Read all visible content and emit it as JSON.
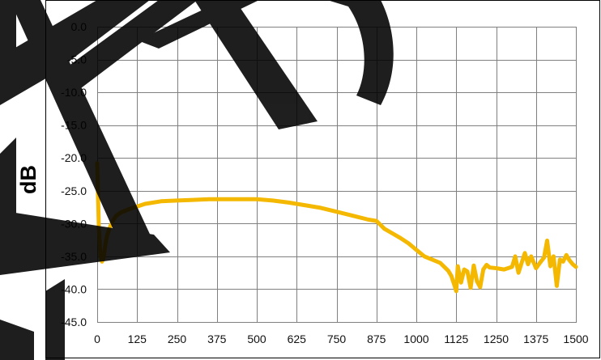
{
  "chart_data": {
    "type": "line",
    "title": "",
    "xlabel": "",
    "ylabel": "dB",
    "xlim": [
      0,
      1500
    ],
    "ylim": [
      -45,
      0
    ],
    "grid": true,
    "legend": "none",
    "x_ticks": [
      0,
      125,
      250,
      375,
      500,
      625,
      750,
      875,
      1000,
      1125,
      1250,
      1375,
      1500
    ],
    "x_tick_labels": [
      "0",
      "125",
      "250",
      "375",
      "500",
      "625",
      "750",
      "875",
      "1000",
      "1125",
      "1250",
      "1375",
      "1500"
    ],
    "y_ticks": [
      0,
      -5,
      -10,
      -15,
      -20,
      -25,
      -30,
      -35,
      -40,
      -45
    ],
    "y_tick_labels": [
      "0.0",
      "-5.0",
      "-10.0",
      "-15.0",
      "-20.0",
      "-25.0",
      "-30.0",
      "-35.0",
      "-40.0",
      "-45.0"
    ],
    "series": [
      {
        "color": "#F5B800",
        "x": [
          0,
          5,
          10,
          15,
          20,
          25,
          30,
          40,
          50,
          60,
          75,
          100,
          125,
          150,
          200,
          250,
          300,
          350,
          400,
          450,
          500,
          550,
          600,
          650,
          700,
          750,
          800,
          850,
          875,
          900,
          925,
          950,
          975,
          1000,
          1025,
          1050,
          1075,
          1100,
          1110,
          1120,
          1125,
          1130,
          1140,
          1150,
          1160,
          1170,
          1180,
          1190,
          1200,
          1210,
          1220,
          1230,
          1250,
          1275,
          1300,
          1310,
          1320,
          1330,
          1340,
          1350,
          1360,
          1375,
          1390,
          1400,
          1410,
          1420,
          1430,
          1440,
          1450,
          1460,
          1470,
          1480,
          1490,
          1500
        ],
        "values": [
          -20.8,
          -30.5,
          -34.8,
          -35.8,
          -35.2,
          -33.5,
          -32.0,
          -30.5,
          -29.5,
          -28.8,
          -28.3,
          -27.8,
          -27.4,
          -27.0,
          -26.6,
          -26.5,
          -26.4,
          -26.3,
          -26.3,
          -26.3,
          -26.3,
          -26.5,
          -26.8,
          -27.2,
          -27.6,
          -28.2,
          -28.8,
          -29.4,
          -29.6,
          -30.8,
          -31.5,
          -32.2,
          -33.0,
          -34.0,
          -35.0,
          -35.5,
          -36.0,
          -37.2,
          -38.0,
          -39.5,
          -40.3,
          -36.5,
          -39.0,
          -37.0,
          -37.3,
          -39.8,
          -36.4,
          -38.8,
          -39.7,
          -37.0,
          -36.3,
          -36.7,
          -36.8,
          -37.0,
          -36.6,
          -35.0,
          -37.5,
          -36.0,
          -34.5,
          -36.2,
          -35.0,
          -36.8,
          -35.8,
          -35.2,
          -32.6,
          -36.5,
          -35.0,
          -39.5,
          -35.5,
          -35.8,
          -34.8,
          -35.6,
          -36.2,
          -36.6
        ]
      }
    ]
  }
}
